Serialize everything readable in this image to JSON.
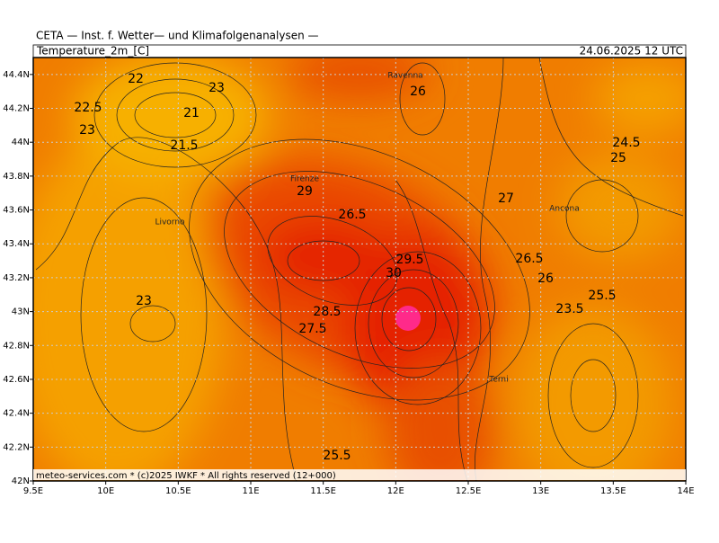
{
  "header": "CETA — Inst. f. Wetter— und Klimafolgenanalysen —",
  "title": "Temperature_2m_[C]",
  "date": "24.06.2025 12 UTC",
  "footer": "meteo-services.com * (c)2025 IWKF * All rights reserved (12+000)",
  "xlim": [
    9.5,
    14
  ],
  "ylim": [
    42,
    44.5
  ],
  "xticks": [
    {
      "value": 9.5,
      "label": "9.5E"
    },
    {
      "value": 10,
      "label": "10E"
    },
    {
      "value": 10.5,
      "label": "10.5E"
    },
    {
      "value": 11,
      "label": "11E"
    },
    {
      "value": 11.5,
      "label": "11.5E"
    },
    {
      "value": 12,
      "label": "12E"
    },
    {
      "value": 12.5,
      "label": "12.5E"
    },
    {
      "value": 13,
      "label": "13E"
    },
    {
      "value": 13.5,
      "label": "13.5E"
    },
    {
      "value": 14,
      "label": "14E"
    }
  ],
  "yticks": [
    {
      "value": 42,
      "label": "42N"
    },
    {
      "value": 42.2,
      "label": "42.2N"
    },
    {
      "value": 42.4,
      "label": "42.4N"
    },
    {
      "value": 42.6,
      "label": "42.6N"
    },
    {
      "value": 42.8,
      "label": "42.8N"
    },
    {
      "value": 43,
      "label": "43N"
    },
    {
      "value": 43.2,
      "label": "43.2N"
    },
    {
      "value": 43.4,
      "label": "43.4N"
    },
    {
      "value": 43.6,
      "label": "43.6N"
    },
    {
      "value": 43.8,
      "label": "43.8N"
    },
    {
      "value": 44,
      "label": "44N"
    },
    {
      "value": 44.2,
      "label": "44.2N"
    },
    {
      "value": 44.4,
      "label": "44.4N"
    }
  ],
  "contour_labels": [
    22,
    23,
    22.5,
    21,
    23,
    21.5,
    26,
    24.5,
    25,
    29,
    27,
    26.5,
    29.5,
    26.5,
    30,
    26,
    25.5,
    23,
    23.5,
    28.5,
    27.5,
    25.5
  ],
  "cities": [
    "Ravenna",
    "Firenze",
    "Livorno",
    "Ancona",
    "Terni"
  ]
}
